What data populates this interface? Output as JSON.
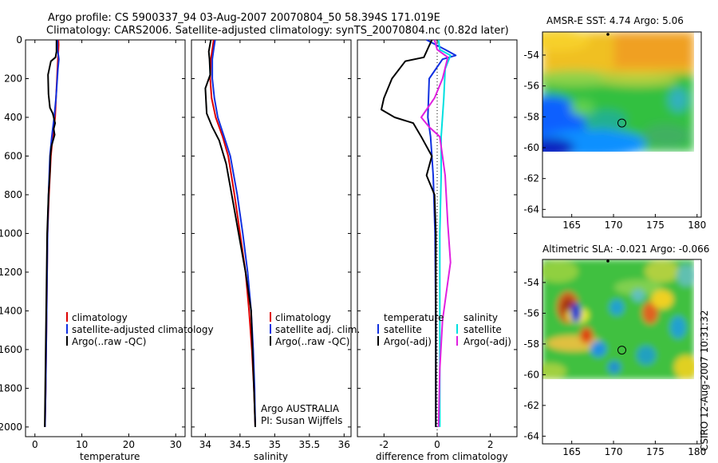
{
  "title": {
    "line1": "Argo profile: CS 5900337_94 03-Aug-2007 20070804_50 58.394S 171.019E",
    "line2": "Climatology: CARS2006. Satellite-adjusted climatology: synTS_20070804.nc (0.82d later)"
  },
  "credit": "CSIRO 12-Aug-2007 10:31:32",
  "institution": {
    "line1": "Argo AUSTRALIA",
    "line2": "PI: Susan Wijffels"
  },
  "colors": {
    "climatology": "#dd0000",
    "satellite": "#1030e0",
    "argo": "#000000",
    "satellite_diff_salinity": "#00e0e0",
    "argo_diff_salinity": "#e020e0",
    "argo_marker": "#000000"
  },
  "chart_data": [
    {
      "id": "temperature",
      "type": "line",
      "xlabel": "temperature",
      "ylabel": "",
      "xlim": [
        -2,
        32
      ],
      "ylim": [
        2050,
        0
      ],
      "xticks": [
        0,
        10,
        20,
        30
      ],
      "yticks": [
        0,
        200,
        400,
        600,
        800,
        1000,
        1200,
        1400,
        1600,
        1800,
        2000
      ],
      "legend": [
        "climatology",
        "satellite-adjusted climatology",
        "Argo(..raw -QC)"
      ],
      "legend_position": "lower-middle",
      "series": [
        {
          "name": "climatology",
          "color_key": "climatology",
          "x": [
            5.0,
            5.05,
            5.0,
            4.9,
            4.8,
            4.7,
            4.5,
            4.3,
            3.8,
            3.4,
            3.0,
            2.7,
            2.5,
            2.3,
            2.15
          ],
          "y": [
            0,
            25,
            50,
            100,
            150,
            200,
            300,
            400,
            500,
            600,
            800,
            1000,
            1400,
            1800,
            2000
          ]
        },
        {
          "name": "satellite-adjusted climatology",
          "color_key": "satellite",
          "x": [
            4.8,
            4.8,
            5.0,
            5.1,
            4.9,
            4.5,
            4.1,
            3.6,
            3.2,
            2.9,
            2.7,
            2.5,
            2.3,
            2.15
          ],
          "y": [
            0,
            50,
            80,
            100,
            150,
            300,
            400,
            500,
            600,
            800,
            1000,
            1400,
            1800,
            2000
          ]
        },
        {
          "name": "Argo(..raw -QC)",
          "color_key": "argo",
          "x": [
            4.6,
            4.6,
            4.4,
            3.4,
            2.8,
            2.9,
            3.2,
            3.8,
            4.3,
            4.0,
            4.2,
            3.5,
            3.3,
            3.2,
            2.9,
            2.6,
            2.4,
            2.2,
            2.1
          ],
          "y": [
            0,
            60,
            90,
            110,
            180,
            280,
            350,
            380,
            430,
            460,
            490,
            550,
            600,
            680,
            800,
            1000,
            1400,
            1800,
            2000
          ]
        }
      ]
    },
    {
      "id": "salinity",
      "type": "line",
      "xlabel": "salinity",
      "ylabel": "",
      "xlim": [
        33.8,
        36.1
      ],
      "ylim": [
        2050,
        0
      ],
      "xticks": [
        34,
        34.5,
        35,
        35.5,
        36
      ],
      "xtick_labels": [
        "34",
        "34.5",
        "35",
        "35.5",
        "36"
      ],
      "yticks": [
        0,
        200,
        400,
        600,
        800,
        1000,
        1200,
        1400,
        1600,
        1800,
        2000
      ],
      "legend": [
        "climatology",
        "satellite adj. clim.",
        "Argo(..raw -QC)"
      ],
      "legend_position": "lower-right",
      "series": [
        {
          "name": "climatology",
          "color_key": "climatology",
          "x": [
            34.12,
            34.1,
            34.08,
            34.07,
            34.09,
            34.15,
            34.25,
            34.33,
            34.42,
            34.5,
            34.58,
            34.63,
            34.67,
            34.7,
            34.72
          ],
          "y": [
            0,
            50,
            100,
            200,
            300,
            400,
            500,
            600,
            800,
            1000,
            1200,
            1400,
            1600,
            1800,
            2000
          ]
        },
        {
          "name": "satellite adj. clim.",
          "color_key": "satellite",
          "x": [
            34.14,
            34.12,
            34.1,
            34.1,
            34.13,
            34.18,
            34.27,
            34.36,
            34.46,
            34.54,
            34.61,
            34.66,
            34.69,
            34.71,
            34.72
          ],
          "y": [
            0,
            50,
            100,
            200,
            300,
            400,
            500,
            600,
            800,
            1000,
            1200,
            1400,
            1600,
            1800,
            2000
          ]
        },
        {
          "name": "Argo(..raw -QC)",
          "color_key": "argo",
          "x": [
            34.08,
            34.05,
            34.06,
            34.07,
            34.0,
            34.02,
            34.1,
            34.2,
            34.3,
            34.4,
            34.48,
            34.58,
            34.66,
            34.68,
            34.7,
            34.72
          ],
          "y": [
            0,
            60,
            100,
            180,
            250,
            380,
            450,
            520,
            640,
            840,
            1000,
            1200,
            1400,
            1600,
            1800,
            2000
          ]
        }
      ]
    },
    {
      "id": "difference",
      "type": "line",
      "xlabel": "difference from climatology",
      "ylabel": "",
      "xlim": [
        -3,
        3
      ],
      "ylim": [
        2050,
        0
      ],
      "xticks": [
        -2,
        0,
        2
      ],
      "yticks": [
        0,
        200,
        400,
        600,
        800,
        1000,
        1200,
        1400,
        1600,
        1800,
        2000
      ],
      "legend": [
        "temperature",
        "satellite",
        "Argo(-adj)",
        "salinity",
        "satellite",
        "Argo(-adj)"
      ],
      "legend_position": "lower-middle",
      "series": [
        {
          "name": "temperature satellite",
          "color_key": "satellite",
          "x": [
            -0.4,
            0.3,
            0.7,
            0.2,
            -0.3,
            -0.35,
            -0.25,
            -0.15,
            -0.08,
            -0.05,
            -0.05
          ],
          "y": [
            0,
            50,
            80,
            100,
            200,
            400,
            500,
            700,
            1000,
            1500,
            2000
          ]
        },
        {
          "name": "temperature Argo(-adj)",
          "color_key": "argo",
          "x": [
            -0.2,
            -0.5,
            -1.2,
            -1.7,
            -2.0,
            -2.1,
            -1.6,
            -0.9,
            -0.6,
            -0.2,
            -0.4,
            -0.1,
            -0.05,
            -0.05
          ],
          "y": [
            0,
            90,
            110,
            200,
            300,
            360,
            400,
            430,
            500,
            600,
            700,
            800,
            1000,
            2000
          ]
        },
        {
          "name": "salinity satellite",
          "color_key": "satellite_diff_salinity",
          "x": [
            0.05,
            0.1,
            0.5,
            0.3,
            0.25,
            0.15,
            0.15,
            0.1,
            0.1,
            0.1,
            0.1
          ],
          "y": [
            0,
            50,
            80,
            150,
            300,
            500,
            700,
            1000,
            1400,
            1800,
            2000
          ]
        },
        {
          "name": "salinity Argo(-adj)",
          "color_key": "argo_diff_salinity",
          "x": [
            -0.1,
            0.0,
            0.4,
            0.2,
            -0.1,
            -0.6,
            -0.3,
            0.1,
            0.3,
            0.4,
            0.5,
            0.3,
            0.2,
            0.1,
            0.05
          ],
          "y": [
            0,
            50,
            90,
            200,
            300,
            400,
            450,
            500,
            700,
            950,
            1150,
            1350,
            1450,
            1700,
            2000
          ]
        }
      ]
    },
    {
      "id": "amsr-sst-map",
      "type": "heatmap",
      "title": "AMSR-E SST: 4.74 Argo: 5.06",
      "xlim": [
        161.5,
        180.5
      ],
      "ylim": [
        -64.5,
        -52.5
      ],
      "xticks": [
        165,
        170,
        175,
        180
      ],
      "yticks": [
        -54,
        -56,
        -58,
        -60,
        -62,
        -64
      ],
      "data_extent": {
        "lon": [
          162,
          180
        ],
        "lat": [
          -60,
          -52.5
        ]
      },
      "marker": {
        "lon": 171.0,
        "lat": -58.4
      }
    },
    {
      "id": "sla-map",
      "type": "heatmap",
      "title": "Altimetric SLA: -0.021 Argo: -0.066",
      "xlim": [
        161.5,
        180.5
      ],
      "ylim": [
        -64.5,
        -52.5
      ],
      "xticks": [
        165,
        170,
        175,
        180
      ],
      "yticks": [
        -54,
        -56,
        -58,
        -60,
        -62,
        -64
      ],
      "data_extent": {
        "lon": [
          162,
          180
        ],
        "lat": [
          -60,
          -52.5
        ]
      },
      "marker": {
        "lon": 171.0,
        "lat": -58.4
      }
    }
  ]
}
